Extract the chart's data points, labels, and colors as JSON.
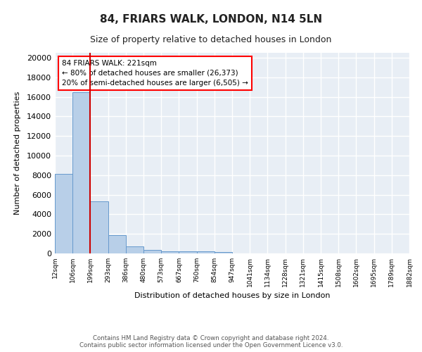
{
  "title": "84, FRIARS WALK, LONDON, N14 5LN",
  "subtitle": "Size of property relative to detached houses in London",
  "xlabel": "Distribution of detached houses by size in London",
  "ylabel": "Number of detached properties",
  "bin_labels": [
    "12sqm",
    "106sqm",
    "199sqm",
    "293sqm",
    "386sqm",
    "480sqm",
    "573sqm",
    "667sqm",
    "760sqm",
    "854sqm",
    "947sqm",
    "1041sqm",
    "1134sqm",
    "1228sqm",
    "1321sqm",
    "1415sqm",
    "1508sqm",
    "1602sqm",
    "1695sqm",
    "1789sqm",
    "1882sqm"
  ],
  "bin_values": [
    8100,
    16500,
    5300,
    1850,
    750,
    330,
    240,
    195,
    185,
    150,
    0,
    0,
    0,
    0,
    0,
    0,
    0,
    0,
    0,
    0,
    0
  ],
  "bar_color": "#b8cfe8",
  "bar_edge_color": "#6699cc",
  "red_line_x": 2,
  "annotation_text": "84 FRIARS WALK: 221sqm\n← 80% of detached houses are smaller (26,373)\n20% of semi-detached houses are larger (6,505) →",
  "annotation_box_color": "white",
  "annotation_box_edge_color": "red",
  "red_line_color": "#cc0000",
  "ylim": [
    0,
    20500
  ],
  "yticks": [
    0,
    2000,
    4000,
    6000,
    8000,
    10000,
    12000,
    14000,
    16000,
    18000,
    20000
  ],
  "background_color": "#e8eef5",
  "grid_color": "#ffffff",
  "footer_line1": "Contains HM Land Registry data © Crown copyright and database right 2024.",
  "footer_line2": "Contains public sector information licensed under the Open Government Licence v3.0."
}
